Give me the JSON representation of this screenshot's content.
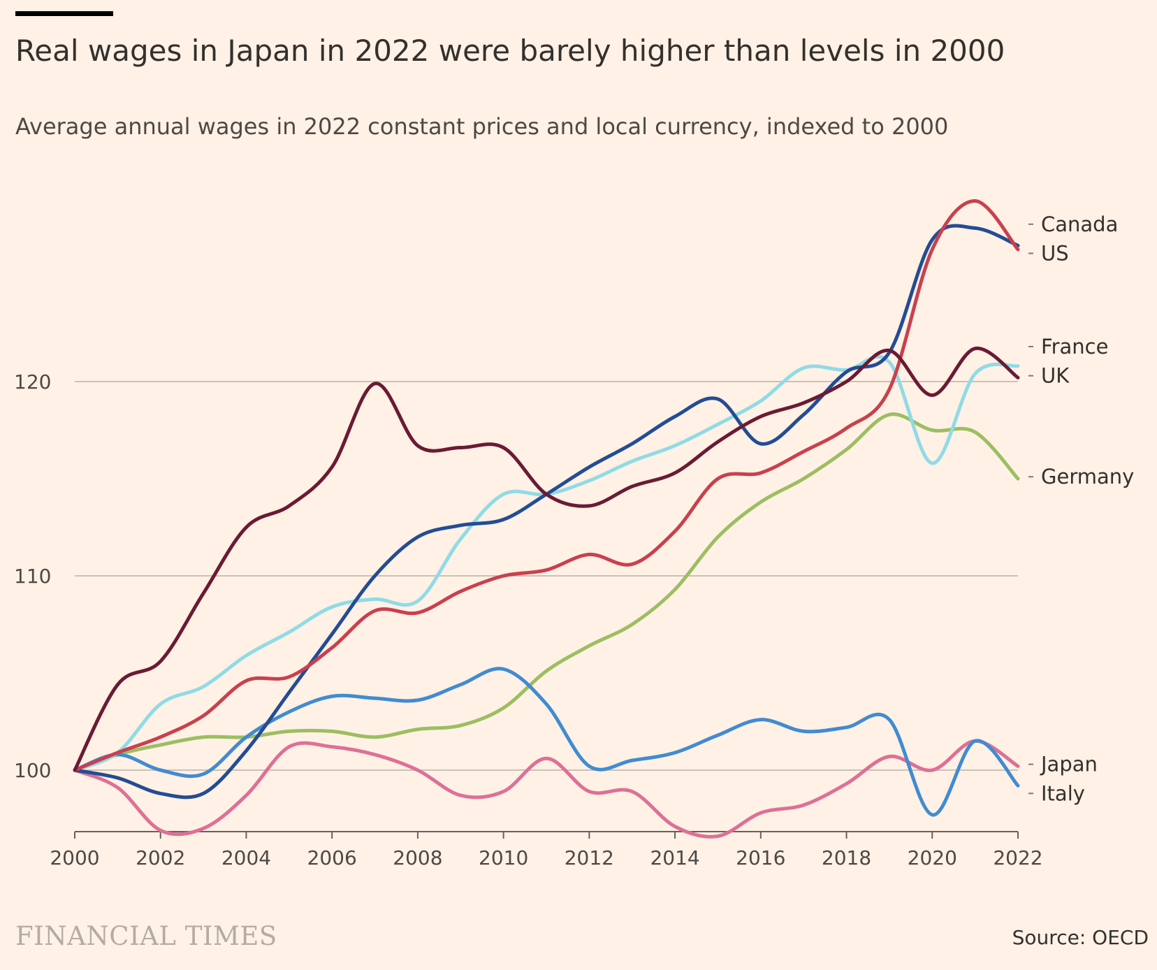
{
  "header": {
    "title": "Real wages in Japan in 2022 were barely higher than levels in 2000",
    "subtitle": "Average annual wages in 2022 constant prices and local currency, indexed to 2000"
  },
  "footer": {
    "brand": "FINANCIAL TIMES",
    "source": "Source: OECD"
  },
  "chart_data": {
    "type": "line",
    "title": "Real wages in Japan in 2022 were barely higher than levels in 2000",
    "subtitle": "Average annual wages in 2022 constant prices and local currency, indexed to 2000",
    "xlabel": "",
    "ylabel": "",
    "xlim": [
      2000,
      2022
    ],
    "ylim": [
      97,
      130
    ],
    "x_ticks": [
      2000,
      2002,
      2004,
      2006,
      2008,
      2010,
      2012,
      2014,
      2016,
      2018,
      2020,
      2022
    ],
    "y_ticks": [
      100,
      110,
      120
    ],
    "grid": true,
    "legend": "direct labels at right",
    "x": [
      2000,
      2001,
      2002,
      2003,
      2004,
      2005,
      2006,
      2007,
      2008,
      2009,
      2010,
      2011,
      2012,
      2013,
      2014,
      2015,
      2016,
      2017,
      2018,
      2019,
      2020,
      2021,
      2022
    ],
    "series": [
      {
        "name": "Canada",
        "color": "#234c93",
        "values": [
          100,
          99.6,
          98.8,
          98.8,
          101.0,
          104.0,
          107.0,
          110.0,
          112.0,
          112.6,
          112.9,
          114.2,
          115.6,
          116.8,
          118.2,
          119.1,
          116.8,
          118.3,
          120.5,
          121.5,
          127.3,
          127.9,
          127.0
        ]
      },
      {
        "name": "US",
        "color": "#c9404e",
        "values": [
          100,
          100.9,
          101.7,
          102.8,
          104.6,
          104.8,
          106.3,
          108.2,
          108.1,
          109.2,
          110.0,
          110.3,
          111.1,
          110.6,
          112.3,
          115.0,
          115.3,
          116.4,
          117.6,
          119.6,
          126.8,
          129.3,
          126.8
        ]
      },
      {
        "name": "France",
        "color": "#8fdbe6",
        "values": [
          100,
          100.9,
          103.4,
          104.3,
          105.9,
          107.1,
          108.4,
          108.8,
          108.7,
          111.9,
          114.2,
          114.2,
          114.9,
          115.9,
          116.7,
          117.8,
          119.0,
          120.7,
          120.6,
          121.0,
          115.8,
          120.4,
          120.8
        ]
      },
      {
        "name": "UK",
        "color": "#6b1a34",
        "values": [
          100,
          104.4,
          105.6,
          109.1,
          112.5,
          113.6,
          115.6,
          119.9,
          116.7,
          116.6,
          116.6,
          114.2,
          113.6,
          114.6,
          115.3,
          116.9,
          118.2,
          118.9,
          120.0,
          121.6,
          119.3,
          121.7,
          120.2
        ]
      },
      {
        "name": "Germany",
        "color": "#9cbe61",
        "values": [
          100,
          100.8,
          101.3,
          101.7,
          101.7,
          102.0,
          102.0,
          101.7,
          102.1,
          102.3,
          103.2,
          105.1,
          106.4,
          107.5,
          109.3,
          112.0,
          113.8,
          115.0,
          116.5,
          118.3,
          117.5,
          117.4,
          115.0
        ]
      },
      {
        "name": "Japan",
        "color": "#418bd1",
        "values": [
          100,
          100.8,
          100.0,
          99.8,
          101.7,
          103.0,
          103.8,
          103.7,
          103.6,
          104.4,
          105.2,
          103.4,
          100.2,
          100.5,
          100.9,
          101.8,
          102.6,
          102.0,
          102.2,
          102.6,
          97.7,
          101.5,
          99.2
        ]
      },
      {
        "name": "Italy",
        "color": "#dd7096",
        "values": [
          100,
          99.1,
          96.9,
          97.0,
          98.7,
          101.2,
          101.2,
          100.8,
          100.0,
          98.7,
          98.9,
          100.6,
          98.9,
          98.9,
          97.1,
          96.6,
          97.8,
          98.2,
          99.3,
          100.7,
          100.0,
          101.5,
          100.2
        ]
      }
    ],
    "labels": [
      {
        "text": "Canada",
        "y": 128.1
      },
      {
        "text": "US",
        "y": 126.6
      },
      {
        "text": "France",
        "y": 121.8
      },
      {
        "text": "UK",
        "y": 120.3
      },
      {
        "text": "Germany",
        "y": 115.1
      },
      {
        "text": "Japan",
        "y": 100.3
      },
      {
        "text": "Italy",
        "y": 98.8
      }
    ]
  }
}
